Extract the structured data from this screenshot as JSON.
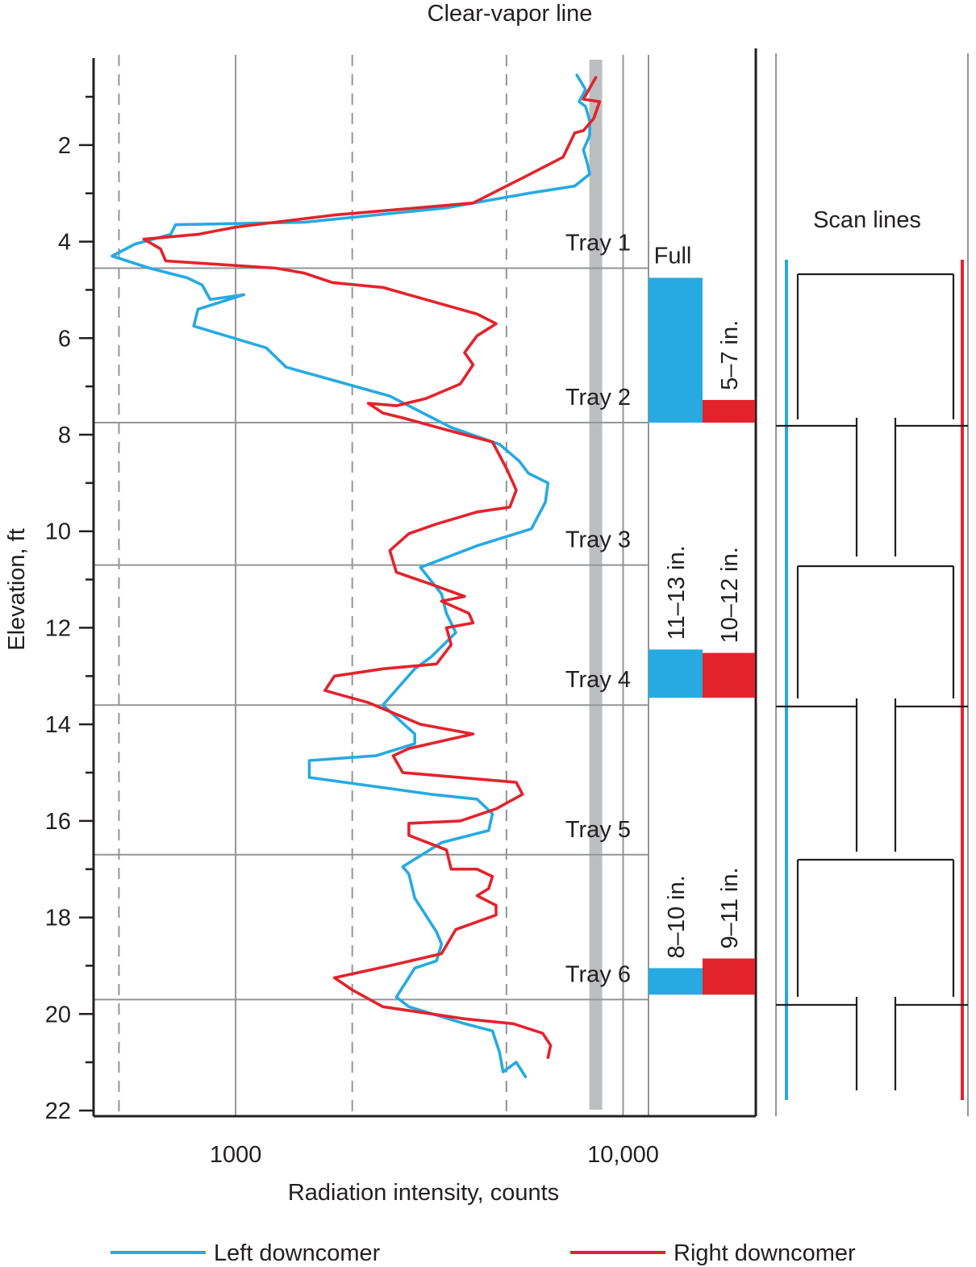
{
  "chart_data": {
    "type": "line",
    "title": "Clear-vapor line",
    "xlabel": "Radiation intensity, counts",
    "ylabel": "Elevation, ft",
    "x_scale": "log",
    "xlim": [
      430,
      22000
    ],
    "ylim": [
      22,
      0
    ],
    "x_tick_labels": [
      "1000",
      "10,000"
    ],
    "x_ticks": [
      1000,
      10000
    ],
    "x_dashed_gridlines": [
      500,
      2000,
      5000
    ],
    "x_solid_gridlines": [
      1000,
      10000
    ],
    "y_ticks": [
      2,
      4,
      6,
      8,
      10,
      12,
      14,
      16,
      18,
      20,
      22
    ],
    "clear_vapor_line_x": 8500,
    "colors": {
      "left": "#27aae1",
      "right": "#e3232c",
      "vapor": "#bcbec0",
      "grid": "#939598",
      "axis": "#231f20"
    },
    "trays": [
      {
        "label": "Tray 1",
        "elevation": 4.55
      },
      {
        "label": "Tray 2",
        "elevation": 7.75
      },
      {
        "label": "Tray 3",
        "elevation": 10.7
      },
      {
        "label": "Tray 4",
        "elevation": 13.6
      },
      {
        "label": "Tray 5",
        "elevation": 16.7
      },
      {
        "label": "Tray 6",
        "elevation": 19.7
      }
    ],
    "downcomer_levels": [
      {
        "left_label": "Full",
        "right_label": "5–7 in.",
        "left_top": 4.75,
        "right_top": 7.28,
        "bottom": 7.75
      },
      {
        "left_label": "11–13 in.",
        "right_label": "10–12 in.",
        "left_top": 12.45,
        "right_top": 12.52,
        "bottom": 13.45
      },
      {
        "left_label": "8–10 in.",
        "right_label": "9–11 in.",
        "left_top": 19.05,
        "right_top": 18.85,
        "bottom": 19.6
      }
    ],
    "scan_lines_label": "Scan lines",
    "series": [
      {
        "name": "Left downcomer",
        "points": [
          [
            7600,
            0.55
          ],
          [
            8000,
            0.85
          ],
          [
            7700,
            1.1
          ],
          [
            8000,
            1.2
          ],
          [
            8200,
            1.5
          ],
          [
            8200,
            1.8
          ],
          [
            7900,
            2.1
          ],
          [
            8100,
            2.4
          ],
          [
            8200,
            2.6
          ],
          [
            7500,
            2.85
          ],
          [
            5700,
            3.0
          ],
          [
            3500,
            3.3
          ],
          [
            1500,
            3.6
          ],
          [
            700,
            3.65
          ],
          [
            680,
            3.85
          ],
          [
            550,
            4.05
          ],
          [
            480,
            4.3
          ],
          [
            600,
            4.55
          ],
          [
            750,
            4.75
          ],
          [
            820,
            4.9
          ],
          [
            860,
            5.2
          ],
          [
            1050,
            5.1
          ],
          [
            800,
            5.4
          ],
          [
            780,
            5.75
          ],
          [
            1200,
            6.2
          ],
          [
            1350,
            6.6
          ],
          [
            2500,
            7.2
          ],
          [
            3600,
            7.85
          ],
          [
            4800,
            8.2
          ],
          [
            5400,
            8.55
          ],
          [
            5700,
            8.8
          ],
          [
            6400,
            9.0
          ],
          [
            6300,
            9.4
          ],
          [
            5800,
            9.95
          ],
          [
            4200,
            10.3
          ],
          [
            3000,
            10.75
          ],
          [
            3400,
            11.3
          ],
          [
            3500,
            11.7
          ],
          [
            3700,
            12.1
          ],
          [
            3200,
            12.6
          ],
          [
            2900,
            12.85
          ],
          [
            2400,
            13.6
          ],
          [
            2900,
            14.2
          ],
          [
            2900,
            14.4
          ],
          [
            2300,
            14.65
          ],
          [
            1550,
            14.75
          ],
          [
            1550,
            15.1
          ],
          [
            3200,
            15.45
          ],
          [
            4200,
            15.55
          ],
          [
            4600,
            15.85
          ],
          [
            4500,
            16.2
          ],
          [
            3400,
            16.45
          ],
          [
            2700,
            16.95
          ],
          [
            2800,
            17.1
          ],
          [
            2900,
            17.6
          ],
          [
            3300,
            18.3
          ],
          [
            3400,
            18.55
          ],
          [
            3300,
            18.9
          ],
          [
            2900,
            19.05
          ],
          [
            2600,
            19.65
          ],
          [
            2800,
            19.85
          ],
          [
            3900,
            20.2
          ],
          [
            4600,
            20.35
          ],
          [
            4800,
            20.8
          ],
          [
            4900,
            21.2
          ],
          [
            5300,
            21.0
          ],
          [
            5600,
            21.3
          ]
        ]
      },
      {
        "name": "Right downcomer",
        "points": [
          [
            8500,
            0.6
          ],
          [
            7900,
            1.05
          ],
          [
            8700,
            1.1
          ],
          [
            8400,
            1.45
          ],
          [
            7900,
            1.7
          ],
          [
            7500,
            1.75
          ],
          [
            7000,
            2.25
          ],
          [
            5600,
            2.65
          ],
          [
            4100,
            3.2
          ],
          [
            1800,
            3.45
          ],
          [
            1000,
            3.7
          ],
          [
            800,
            3.85
          ],
          [
            580,
            3.95
          ],
          [
            640,
            4.15
          ],
          [
            660,
            4.4
          ],
          [
            1270,
            4.55
          ],
          [
            1500,
            4.65
          ],
          [
            1780,
            4.85
          ],
          [
            2400,
            4.95
          ],
          [
            4200,
            5.5
          ],
          [
            4700,
            5.7
          ],
          [
            4600,
            5.75
          ],
          [
            4200,
            5.95
          ],
          [
            3900,
            6.3
          ],
          [
            4100,
            6.55
          ],
          [
            3800,
            6.95
          ],
          [
            3100,
            7.25
          ],
          [
            2600,
            7.4
          ],
          [
            2200,
            7.35
          ],
          [
            2400,
            7.55
          ],
          [
            2700,
            7.65
          ],
          [
            3500,
            7.9
          ],
          [
            4600,
            8.15
          ],
          [
            5000,
            8.7
          ],
          [
            5200,
            9.0
          ],
          [
            5300,
            9.15
          ],
          [
            5100,
            9.5
          ],
          [
            4200,
            9.6
          ],
          [
            3300,
            9.85
          ],
          [
            2800,
            10.05
          ],
          [
            2500,
            10.4
          ],
          [
            2600,
            10.85
          ],
          [
            3200,
            11.1
          ],
          [
            3900,
            11.35
          ],
          [
            3400,
            11.45
          ],
          [
            4000,
            11.7
          ],
          [
            4100,
            11.9
          ],
          [
            3500,
            12.0
          ],
          [
            3600,
            12.35
          ],
          [
            3300,
            12.75
          ],
          [
            2400,
            12.85
          ],
          [
            1800,
            13.0
          ],
          [
            1700,
            13.3
          ],
          [
            2200,
            13.55
          ],
          [
            3000,
            14.0
          ],
          [
            4100,
            14.2
          ],
          [
            2800,
            14.5
          ],
          [
            2550,
            14.65
          ],
          [
            2700,
            15.0
          ],
          [
            5300,
            15.2
          ],
          [
            5500,
            15.45
          ],
          [
            4700,
            15.75
          ],
          [
            3800,
            16.0
          ],
          [
            2800,
            16.05
          ],
          [
            2800,
            16.3
          ],
          [
            3500,
            16.6
          ],
          [
            3600,
            17.0
          ],
          [
            4200,
            17.0
          ],
          [
            4600,
            17.15
          ],
          [
            4500,
            17.4
          ],
          [
            4200,
            17.55
          ],
          [
            4700,
            17.75
          ],
          [
            4700,
            17.95
          ],
          [
            3700,
            18.25
          ],
          [
            3400,
            18.75
          ],
          [
            2500,
            19.0
          ],
          [
            1800,
            19.25
          ],
          [
            2000,
            19.5
          ],
          [
            2400,
            19.85
          ],
          [
            3900,
            20.1
          ],
          [
            5200,
            20.2
          ],
          [
            6200,
            20.4
          ],
          [
            6500,
            20.65
          ],
          [
            6400,
            20.9
          ]
        ]
      }
    ],
    "legend": [
      "Left downcomer",
      "Right downcomer"
    ],
    "legend_position": "bottom"
  }
}
